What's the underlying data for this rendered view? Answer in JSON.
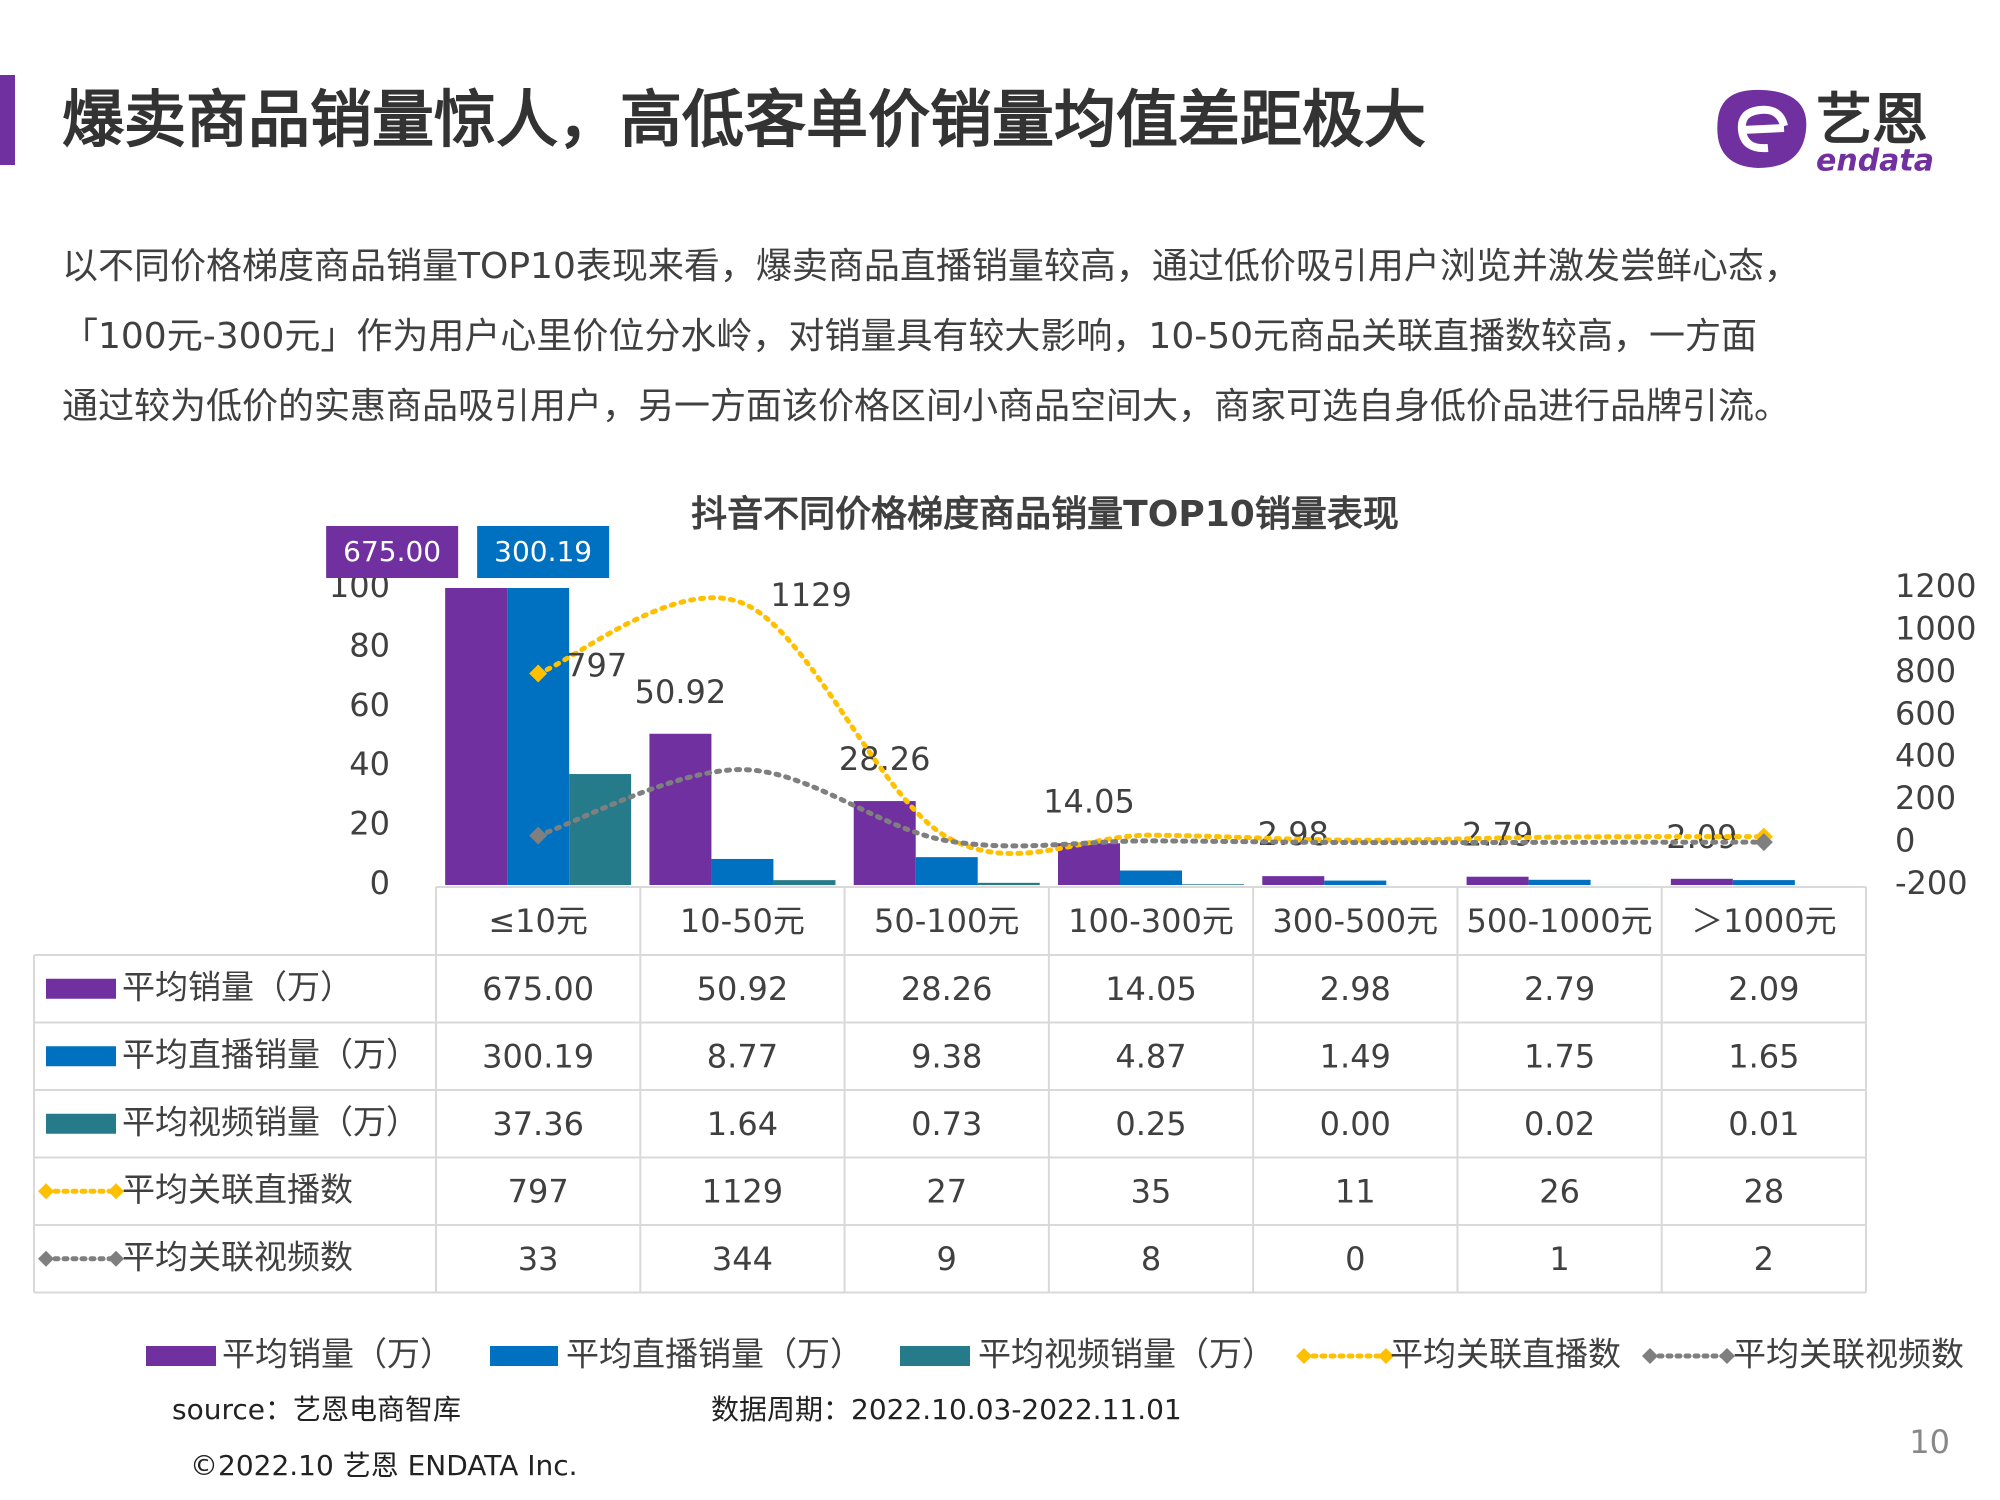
{
  "header": {
    "title": "爆卖商品销量惊人，高低客单价销量均值差距极大",
    "logo_cn": "艺恩",
    "logo_en": "endata"
  },
  "paragraph": [
    "以不同价格梯度商品销量TOP10表现来看，爆卖商品直播销量较高，通过低价吸引用户浏览并激发尝鲜心态，",
    "「100元-300元」作为用户心里价位分水岭，对销量具有较大影响，10-50元商品关联直播数较高，一方面",
    "通过较为低价的实惠商品吸引用户，另一方面该价格区间小商品空间大，商家可选自身低价品进行品牌引流。"
  ],
  "chart_data": {
    "type": "bar-line",
    "title": "抖音不同价格梯度商品销量TOP10销量表现",
    "categories": [
      "≤10元",
      "10-50元",
      "50-100元",
      "100-300元",
      "300-500元",
      "500-1000元",
      "＞1000元"
    ],
    "ylim": [
      0,
      100
    ],
    "yticks": [
      0,
      20,
      40,
      60,
      80,
      100
    ],
    "y2lim": [
      -200,
      1200
    ],
    "y2ticks": [
      -200,
      0,
      200,
      400,
      600,
      800,
      1000,
      1200
    ],
    "series": [
      {
        "name": "平均销量（万）",
        "type": "bar",
        "color": "#7030a0",
        "values": [
          675,
          50.92,
          28.26,
          14.05,
          2.98,
          2.79,
          2.09
        ],
        "value_labels": [
          "675.00",
          "50.92",
          "28.26",
          "14.05",
          "2.98",
          "2.79",
          "2.09"
        ]
      },
      {
        "name": "平均直播销量（万）",
        "type": "bar",
        "color": "#0070c0",
        "values": [
          300.19,
          8.77,
          9.38,
          4.87,
          1.49,
          1.75,
          1.65
        ],
        "value_labels": [
          "300.19",
          "8.77",
          "9.38",
          "4.87",
          "1.49",
          "1.75",
          "1.65"
        ]
      },
      {
        "name": "平均视频销量（万）",
        "type": "bar",
        "color": "#267b8a",
        "values": [
          37.36,
          1.64,
          0.73,
          0.25,
          0,
          0.02,
          0.01
        ],
        "value_labels": [
          "37.36",
          "1.64",
          "0.73",
          "0.25",
          "0.00",
          "0.02",
          "0.01"
        ]
      },
      {
        "name": "平均关联直播数",
        "type": "line",
        "axis": "y2",
        "color": "#ffc000",
        "values": [
          797,
          1129,
          27,
          35,
          11,
          26,
          28
        ]
      },
      {
        "name": "平均关联视频数",
        "type": "line",
        "axis": "y2",
        "color": "#7f7f7f",
        "values": [
          33,
          344,
          9,
          8,
          0,
          1,
          2
        ]
      }
    ]
  },
  "footer": {
    "source": "source：艺恩电商智库",
    "period": "数据周期：2022.10.03-2022.11.01",
    "copyright": "©2022.10 艺恩 ENDATA Inc.",
    "page": "10"
  }
}
